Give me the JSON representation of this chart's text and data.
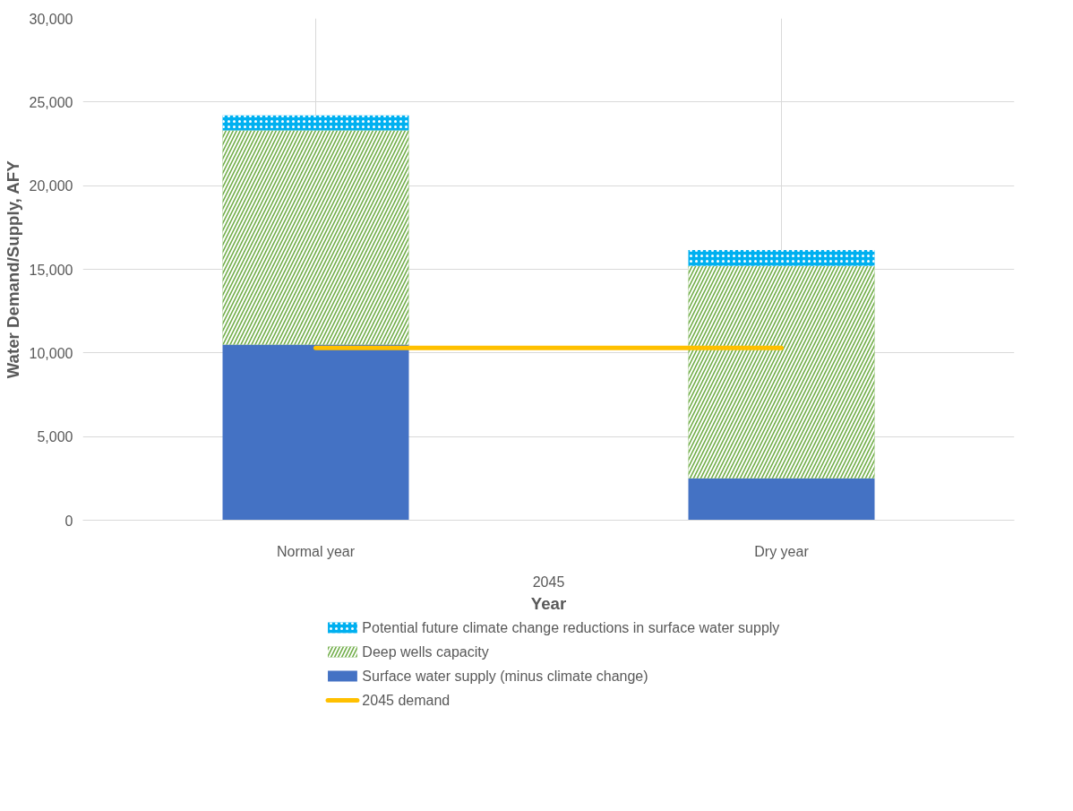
{
  "chart_data": {
    "type": "bar",
    "stacked": true,
    "categories": [
      "Normal year",
      "Dry year"
    ],
    "xlabel": "Year",
    "ylabel": "Water Demand/Supply, AFY",
    "annotations": [
      "2045"
    ],
    "series": [
      {
        "name": "Surface water supply (minus climate change)",
        "color": "#4472c4",
        "values": [
          10500,
          2500
        ]
      },
      {
        "name": "Deep wells capacity",
        "color": "#70ad47",
        "values": [
          12800,
          12700
        ]
      },
      {
        "name": "Potential future climate change reductions in surface water supply",
        "color": "#00b0f0",
        "values": [
          900,
          950
        ]
      },
      {
        "name": "2045 demand",
        "color": "#ffc000",
        "type": "line",
        "values": [
          10300,
          10300
        ]
      }
    ],
    "ylim": [
      0,
      30000
    ],
    "yticks": [
      {
        "value": 0,
        "label": "0"
      },
      {
        "value": 5000,
        "label": "5,000"
      },
      {
        "value": 10000,
        "label": "10,000"
      },
      {
        "value": 15000,
        "label": "15,000"
      },
      {
        "value": 20000,
        "label": "20,000"
      },
      {
        "value": 25000,
        "label": "25,000"
      },
      {
        "value": 30000,
        "label": "30,000"
      }
    ],
    "grid": true,
    "legend": "bottom"
  }
}
